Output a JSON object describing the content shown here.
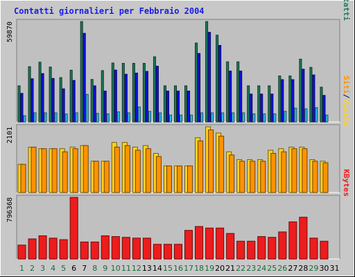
{
  "title": "Contatti giornalieri per Febbraio 2004",
  "colors": {
    "title": "#1a1ae6",
    "background": "#c8c8c8",
    "panel": "#c0c0c0",
    "contatti": "#1f7a5a",
    "file": "#1212e8",
    "pagine": "#33bbee",
    "visite": "#ffd21e",
    "siti": "#ff9200",
    "kbytes": "#ee1c1c",
    "weekday": "#1a6a3a",
    "weekend": "#000000",
    "sep": "#00007a"
  },
  "chart_data": {
    "type": "bar",
    "categories": [
      "1",
      "2",
      "3",
      "4",
      "5",
      "6",
      "7",
      "8",
      "9",
      "10",
      "11",
      "12",
      "13",
      "14",
      "15",
      "16",
      "17",
      "18",
      "19",
      "20",
      "21",
      "22",
      "23",
      "24",
      "25",
      "26",
      "27",
      "28",
      "29",
      "30",
      "31"
    ],
    "weekend_days": [
      6,
      7,
      13,
      14,
      20,
      21,
      27,
      28
    ],
    "panels": [
      {
        "ymax_label": "59870",
        "ymax": 59870,
        "label_parts": [
          {
            "text": "Pagine",
            "color_key": "pagine"
          },
          {
            "text": "/",
            "color_key": "sep"
          },
          {
            "text": "File",
            "color_key": "file"
          },
          {
            "text": "/",
            "color_key": "sep"
          },
          {
            "text": "Contatti",
            "color_key": "contatti"
          }
        ],
        "series": [
          {
            "name": "Contatti",
            "color_key": "contatti",
            "values": [
              21500,
              32900,
              35600,
              32700,
              26400,
              30800,
              59800,
              25300,
              30600,
              35100,
              34900,
              34900,
              34900,
              38800,
              21500,
              21500,
              21500,
              47000,
              59800,
              51700,
              35800,
              35800,
              21500,
              21500,
              21500,
              27400,
              27400,
              37400,
              32500,
              20700,
              0
            ]
          },
          {
            "name": "File",
            "color_key": "file",
            "values": [
              17000,
              25700,
              28800,
              25900,
              19700,
              24700,
              52800,
              21500,
              18400,
              30900,
              28400,
              29100,
              30100,
              33200,
              18400,
              18400,
              18400,
              40800,
              53400,
              45600,
              30300,
              30300,
              16600,
              16600,
              16600,
              25200,
              25200,
              31400,
              28000,
              15800,
              0
            ]
          },
          {
            "name": "Pagine",
            "color_key": "pagine",
            "values": [
              3700,
              5400,
              5400,
              5400,
              4700,
              5400,
              16400,
              5100,
              4800,
              6000,
              5400,
              8900,
              6300,
              5400,
              4100,
              4100,
              4100,
              5400,
              5400,
              5400,
              5400,
              5400,
              4800,
              4800,
              4800,
              6300,
              8200,
              7800,
              8500,
              4100,
              0
            ]
          }
        ]
      },
      {
        "ymax_label": "2101",
        "ymax": 2101,
        "label_parts": [
          {
            "text": "Siti",
            "color_key": "siti"
          },
          {
            "text": "/",
            "color_key": "sep"
          },
          {
            "text": "Visite",
            "color_key": "visite"
          }
        ],
        "series": [
          {
            "name": "Visite",
            "color_key": "visite",
            "values": [
              900,
              1450,
              1400,
              1400,
              1400,
              1450,
              1500,
              1000,
              1000,
              1600,
              1600,
              1450,
              1500,
              1250,
              850,
              850,
              850,
              1750,
              2101,
              1900,
              1300,
              1050,
              1050,
              1050,
              1350,
              1400,
              1450,
              1450,
              1050,
              1000,
              0
            ]
          },
          {
            "name": "Siti",
            "color_key": "siti",
            "values": [
              900,
              1450,
              1400,
              1400,
              1300,
              1400,
              1500,
              1000,
              1000,
              1450,
              1500,
              1350,
              1400,
              1150,
              850,
              850,
              850,
              1650,
              2000,
              1800,
              1200,
              1000,
              1000,
              1000,
              1250,
              1300,
              1400,
              1400,
              1000,
              950,
              0
            ]
          }
        ]
      },
      {
        "ymax_label": "796368",
        "ymax": 796368,
        "label_parts": [
          {
            "text": "KBytes",
            "color_key": "kbytes"
          }
        ],
        "series": [
          {
            "name": "KBytes",
            "color_key": "kbytes",
            "values": [
              180000,
              260000,
              300000,
              270000,
              250000,
              796368,
              220000,
              220000,
              300000,
              290000,
              280000,
              270000,
              270000,
              190000,
              190000,
              190000,
              370000,
              420000,
              400000,
              400000,
              330000,
              230000,
              230000,
              290000,
              280000,
              350000,
              480000,
              540000,
              270000,
              230000,
              0
            ]
          }
        ]
      }
    ]
  }
}
